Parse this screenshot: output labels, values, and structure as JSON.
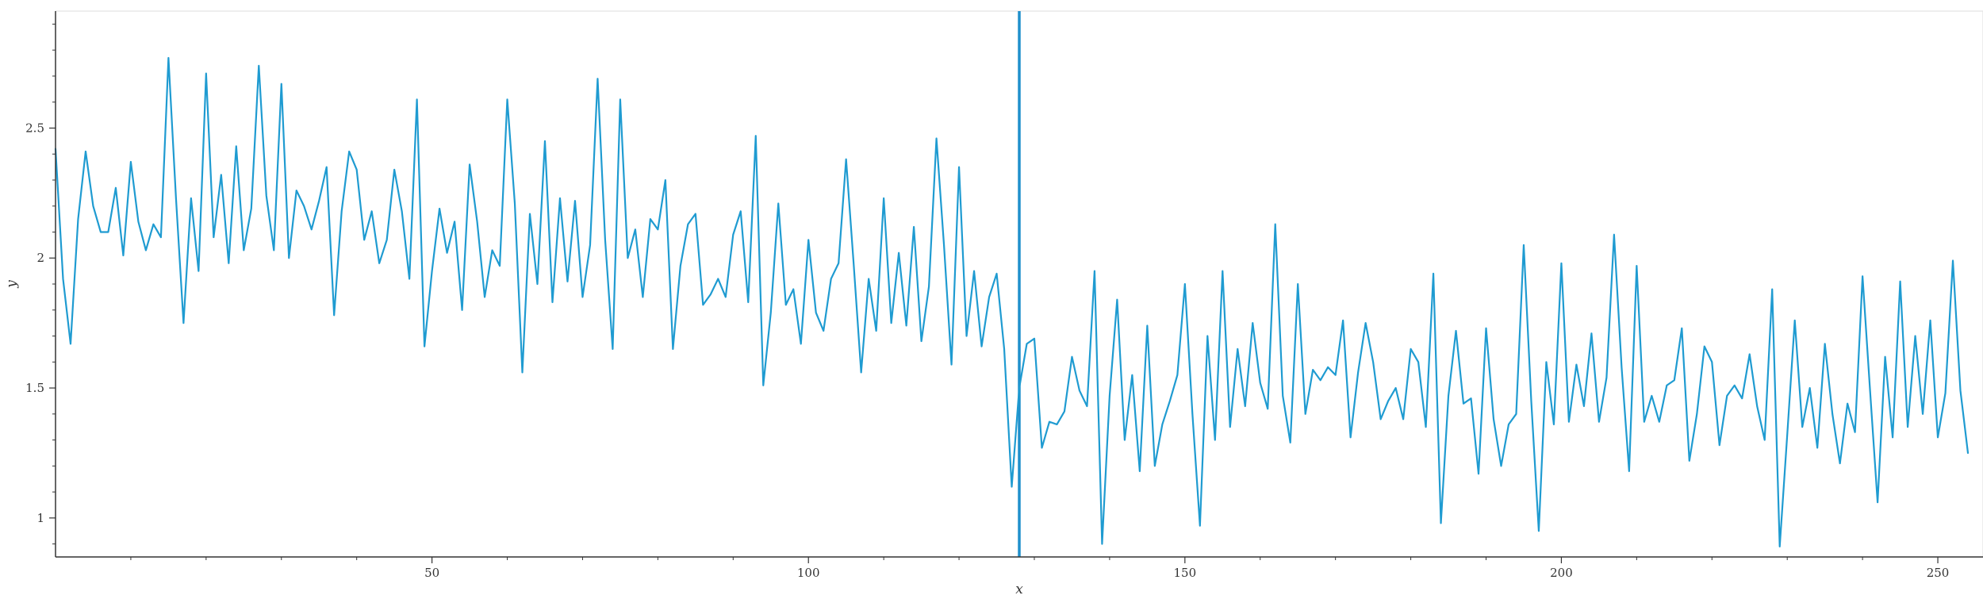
{
  "chart_data": {
    "type": "line",
    "title": "",
    "xlabel": "x",
    "ylabel": "y",
    "xlim": [
      0,
      256
    ],
    "ylim": [
      0.85,
      2.95
    ],
    "x_ticks": [
      50,
      100,
      150,
      200,
      250
    ],
    "x_tick_labels": [
      "50",
      "100",
      "150",
      "200",
      "250"
    ],
    "x_minor_step": 10,
    "y_ticks": [
      1,
      1.5,
      2,
      2.5
    ],
    "y_tick_labels": [
      "1",
      "1.5",
      "2",
      "2.5"
    ],
    "y_minor_step": 0.1,
    "grid": false,
    "legend": "none",
    "vline_x": 128,
    "colors": {
      "series": "#1f9bd1",
      "vline": "#1f8fcb",
      "axis": "#333333",
      "frame": "#dddddd"
    },
    "series": [
      {
        "x_start": 0,
        "x_step": 1,
        "values": [
          2.42,
          1.92,
          1.67,
          2.15,
          2.41,
          2.2,
          2.1,
          2.1,
          2.27,
          2.01,
          2.37,
          2.14,
          2.03,
          2.13,
          2.08,
          2.77,
          2.23,
          1.75,
          2.23,
          1.95,
          2.71,
          2.08,
          2.32,
          1.98,
          2.43,
          2.03,
          2.19,
          2.74,
          2.24,
          2.03,
          2.67,
          2.0,
          2.26,
          2.2,
          2.11,
          2.22,
          2.35,
          1.78,
          2.18,
          2.41,
          2.34,
          2.07,
          2.18,
          1.98,
          2.07,
          2.34,
          2.18,
          1.92,
          2.61,
          1.66,
          1.95,
          2.19,
          2.02,
          2.14,
          1.8,
          2.36,
          2.14,
          1.85,
          2.03,
          1.97,
          2.61,
          2.21,
          1.56,
          2.17,
          1.9,
          2.45,
          1.83,
          2.23,
          1.91,
          2.22,
          1.85,
          2.05,
          2.69,
          2.07,
          1.65,
          2.61,
          2.0,
          2.11,
          1.85,
          2.15,
          2.11,
          2.3,
          1.65,
          1.97,
          2.13,
          2.17,
          1.82,
          1.86,
          1.92,
          1.85,
          2.09,
          2.18,
          1.83,
          2.47,
          1.51,
          1.79,
          2.21,
          1.82,
          1.88,
          1.67,
          2.07,
          1.79,
          1.72,
          1.92,
          1.98,
          2.38,
          1.98,
          1.56,
          1.92,
          1.72,
          2.23,
          1.75,
          2.02,
          1.74,
          2.12,
          1.68,
          1.89,
          2.46,
          2.05,
          1.59,
          2.35,
          1.7,
          1.95,
          1.66,
          1.85,
          1.94,
          1.65,
          1.12,
          1.5,
          1.67,
          1.69,
          1.27,
          1.37,
          1.36,
          1.41,
          1.62,
          1.49,
          1.43,
          1.95,
          0.9,
          1.47,
          1.84,
          1.3,
          1.55,
          1.18,
          1.74,
          1.2,
          1.36,
          1.45,
          1.55,
          1.9,
          1.4,
          0.97,
          1.7,
          1.3,
          1.95,
          1.35,
          1.65,
          1.43,
          1.75,
          1.52,
          1.42,
          2.13,
          1.47,
          1.29,
          1.9,
          1.4,
          1.57,
          1.53,
          1.58,
          1.55,
          1.76,
          1.31,
          1.56,
          1.75,
          1.6,
          1.38,
          1.45,
          1.5,
          1.38,
          1.65,
          1.6,
          1.35,
          1.94,
          0.98,
          1.47,
          1.72,
          1.44,
          1.46,
          1.17,
          1.73,
          1.38,
          1.2,
          1.36,
          1.4,
          2.05,
          1.45,
          0.95,
          1.6,
          1.36,
          1.98,
          1.37,
          1.59,
          1.43,
          1.71,
          1.37,
          1.54,
          2.09,
          1.58,
          1.18,
          1.97,
          1.37,
          1.47,
          1.37,
          1.51,
          1.53,
          1.73,
          1.22,
          1.4,
          1.66,
          1.6,
          1.28,
          1.47,
          1.51,
          1.46,
          1.63,
          1.43,
          1.3,
          1.88,
          0.89,
          1.32,
          1.76,
          1.35,
          1.5,
          1.27,
          1.67,
          1.4,
          1.21,
          1.44,
          1.33,
          1.93,
          1.49,
          1.06,
          1.62,
          1.31,
          1.91,
          1.35,
          1.7,
          1.4,
          1.76,
          1.31,
          1.48,
          1.99,
          1.49,
          1.25
        ]
      }
    ]
  }
}
